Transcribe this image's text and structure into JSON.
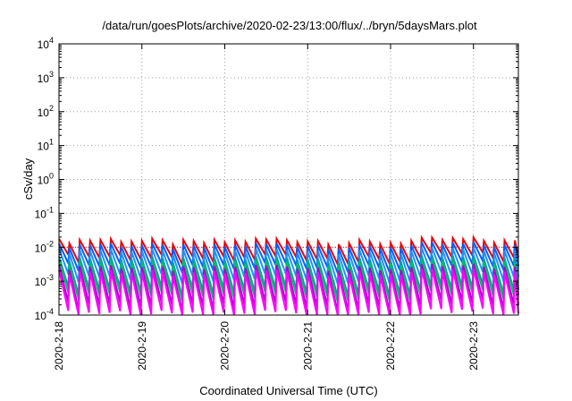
{
  "chart_data": {
    "type": "line",
    "title": "/data/run/goesPlots/archive/2020-02-23/13:00/flux/../bryn/5daysMars.plot",
    "xlabel": "Coordinated Universal Time (UTC)",
    "ylabel": "cSv/day",
    "y_scale": "log",
    "ylim": [
      0.0001,
      10000
    ],
    "xlim": [
      "2020-02-18T00:00",
      "2020-02-23T13:00"
    ],
    "y_ticks": [
      {
        "base": "10",
        "exp": "-4",
        "value": 0.0001
      },
      {
        "base": "10",
        "exp": "-3",
        "value": 0.001
      },
      {
        "base": "10",
        "exp": "-2",
        "value": 0.01
      },
      {
        "base": "10",
        "exp": "-1",
        "value": 0.1
      },
      {
        "base": "10",
        "exp": "0",
        "value": 1
      },
      {
        "base": "10",
        "exp": "1",
        "value": 10
      },
      {
        "base": "10",
        "exp": "2",
        "value": 100
      },
      {
        "base": "10",
        "exp": "3",
        "value": 1000
      },
      {
        "base": "10",
        "exp": "4",
        "value": 10000
      }
    ],
    "x_ticks": [
      "2020-2-18",
      "2020-2-19",
      "2020-2-20",
      "2020-2-21",
      "2020-2-22",
      "2020-2-23"
    ],
    "grid": true,
    "reference_line": {
      "value": 0.01,
      "color": "#e8000b",
      "style": "dotted"
    },
    "series": [
      {
        "color": "#e8000b",
        "peak": 0.015,
        "trough": 0.0045
      },
      {
        "color": "#0060ff",
        "peak": 0.011,
        "trough": 0.0025
      },
      {
        "color": "#1e90ff",
        "peak": 0.0075,
        "trough": 0.0012
      },
      {
        "color": "#00a0a0",
        "peak": 0.0045,
        "trough": 0.0005
      },
      {
        "color": "#00c060",
        "peak": 0.0035,
        "trough": 0.00035
      },
      {
        "color": "#b000d0",
        "peak": 0.0025,
        "trough": 0.00018
      },
      {
        "color": "#ff00ff",
        "peak": 0.0018,
        "trough": 0.0001
      }
    ],
    "cycle_hours": 3
  }
}
